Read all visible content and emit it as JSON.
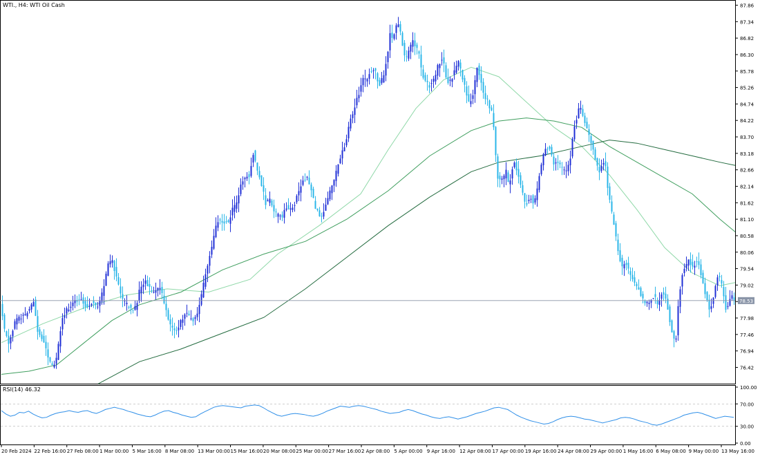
{
  "chart_title": "WTI., H4: WTI Oil Cash",
  "chart_data": [
    {
      "type": "candlestick",
      "title": "WTI., H4: WTI Oil Cash",
      "price_axis_ticks": [
        "87.86",
        "87.34",
        "86.82",
        "86.30",
        "85.78",
        "85.26",
        "84.74",
        "84.22",
        "83.70",
        "83.18",
        "82.66",
        "82.14",
        "81.62",
        "81.10",
        "80.58",
        "80.06",
        "79.54",
        "79.02",
        "78.50",
        "77.98",
        "77.46",
        "76.94",
        "76.42"
      ],
      "ylim": [
        75.95,
        87.98
      ],
      "current_price": "78.53",
      "time_axis_ticks": [
        "20 Feb 2024",
        "22 Feb 16:00",
        "27 Feb 08:00",
        "1 Mar 00:00",
        "5 Mar 16:00",
        "8 Mar 08:00",
        "13 Mar 00:00",
        "15 Mar 16:00",
        "20 Mar 08:00",
        "25 Mar 00:00",
        "27 Mar 16:00",
        "2 Apr 08:00",
        "5 Apr 00:00",
        "9 Apr 16:00",
        "12 Apr 08:00",
        "17 Apr 00:00",
        "19 Apr 16:00",
        "24 Apr 08:00",
        "29 Apr 00:00",
        "1 May 16:00",
        "6 May 08:00",
        "9 May 00:00",
        "13 May 16:00"
      ],
      "price_path": [
        [
          0,
          78.5
        ],
        [
          5,
          77.7
        ],
        [
          12,
          77.2
        ],
        [
          22,
          77.9
        ],
        [
          32,
          78.0
        ],
        [
          42,
          78.2
        ],
        [
          48,
          78.5
        ],
        [
          54,
          77.6
        ],
        [
          62,
          77.3
        ],
        [
          68,
          76.8
        ],
        [
          72,
          76.6
        ],
        [
          76,
          76.4
        ],
        [
          82,
          76.8
        ],
        [
          88,
          77.8
        ],
        [
          95,
          78.2
        ],
        [
          102,
          78.4
        ],
        [
          110,
          78.5
        ],
        [
          118,
          78.6
        ],
        [
          124,
          78.3
        ],
        [
          132,
          78.5
        ],
        [
          140,
          78.3
        ],
        [
          148,
          78.8
        ],
        [
          155,
          79.6
        ],
        [
          162,
          79.8
        ],
        [
          170,
          79.1
        ],
        [
          176,
          78.6
        ],
        [
          182,
          78.4
        ],
        [
          190,
          78.3
        ],
        [
          196,
          78.3
        ],
        [
          202,
          78.9
        ],
        [
          210,
          79.2
        ],
        [
          216,
          78.9
        ],
        [
          224,
          78.8
        ],
        [
          230,
          79.0
        ],
        [
          236,
          78.6
        ],
        [
          242,
          78.0
        ],
        [
          248,
          77.7
        ],
        [
          256,
          77.6
        ],
        [
          262,
          77.9
        ],
        [
          268,
          78.1
        ],
        [
          274,
          78.0
        ],
        [
          280,
          77.9
        ],
        [
          286,
          78.1
        ],
        [
          292,
          78.8
        ],
        [
          298,
          79.5
        ],
        [
          304,
          80.0
        ],
        [
          310,
          80.7
        ],
        [
          316,
          81.1
        ],
        [
          322,
          81.0
        ],
        [
          330,
          81.0
        ],
        [
          336,
          81.4
        ],
        [
          342,
          81.6
        ],
        [
          348,
          82.2
        ],
        [
          354,
          82.4
        ],
        [
          360,
          82.5
        ],
        [
          366,
          83.2
        ],
        [
          372,
          82.7
        ],
        [
          378,
          82.2
        ],
        [
          384,
          81.6
        ],
        [
          390,
          81.7
        ],
        [
          396,
          81.3
        ],
        [
          402,
          81.2
        ],
        [
          408,
          81.2
        ],
        [
          414,
          81.5
        ],
        [
          420,
          81.4
        ],
        [
          426,
          81.6
        ],
        [
          432,
          82.0
        ],
        [
          438,
          82.3
        ],
        [
          444,
          82.4
        ],
        [
          450,
          82.0
        ],
        [
          456,
          81.5
        ],
        [
          462,
          81.2
        ],
        [
          466,
          81.1
        ],
        [
          470,
          81.5
        ],
        [
          476,
          81.9
        ],
        [
          482,
          82.2
        ],
        [
          488,
          82.8
        ],
        [
          494,
          83.2
        ],
        [
          500,
          83.5
        ],
        [
          506,
          84.2
        ],
        [
          512,
          84.6
        ],
        [
          518,
          85.0
        ],
        [
          524,
          85.5
        ],
        [
          530,
          85.5
        ],
        [
          536,
          85.8
        ],
        [
          542,
          85.8
        ],
        [
          548,
          85.3
        ],
        [
          554,
          85.6
        ],
        [
          560,
          86.2
        ],
        [
          564,
          87.0
        ],
        [
          568,
          86.8
        ],
        [
          574,
          87.3
        ],
        [
          578,
          87.2
        ],
        [
          582,
          86.6
        ],
        [
          586,
          86.1
        ],
        [
          592,
          86.4
        ],
        [
          596,
          86.8
        ],
        [
          600,
          86.6
        ],
        [
          606,
          86.3
        ],
        [
          610,
          85.7
        ],
        [
          616,
          85.4
        ],
        [
          622,
          85.3
        ],
        [
          628,
          85.5
        ],
        [
          634,
          86.0
        ],
        [
          640,
          86.2
        ],
        [
          644,
          85.7
        ],
        [
          648,
          85.4
        ],
        [
          654,
          85.6
        ],
        [
          660,
          85.9
        ],
        [
          664,
          86.1
        ],
        [
          668,
          85.6
        ],
        [
          672,
          85.3
        ],
        [
          678,
          84.8
        ],
        [
          684,
          85.0
        ],
        [
          690,
          85.9
        ],
        [
          694,
          85.6
        ],
        [
          700,
          85.0
        ],
        [
          706,
          84.8
        ],
        [
          712,
          84.4
        ],
        [
          716,
          83.6
        ],
        [
          718,
          82.6
        ],
        [
          722,
          82.3
        ],
        [
          728,
          82.4
        ],
        [
          732,
          82.6
        ],
        [
          736,
          82.1
        ],
        [
          740,
          82.6
        ],
        [
          744,
          82.9
        ],
        [
          748,
          82.6
        ],
        [
          752,
          82.3
        ],
        [
          756,
          81.9
        ],
        [
          760,
          81.6
        ],
        [
          764,
          81.6
        ],
        [
          768,
          81.8
        ],
        [
          772,
          81.6
        ],
        [
          776,
          81.9
        ],
        [
          780,
          82.5
        ],
        [
          784,
          83.0
        ],
        [
          790,
          83.3
        ],
        [
          796,
          83.4
        ],
        [
          800,
          82.9
        ],
        [
          806,
          82.9
        ],
        [
          812,
          82.7
        ],
        [
          818,
          82.6
        ],
        [
          824,
          82.9
        ],
        [
          830,
          84.0
        ],
        [
          834,
          84.3
        ],
        [
          838,
          84.7
        ],
        [
          842,
          84.5
        ],
        [
          846,
          84.2
        ],
        [
          850,
          83.9
        ],
        [
          854,
          83.6
        ],
        [
          858,
          83.3
        ],
        [
          864,
          82.8
        ],
        [
          868,
          82.6
        ],
        [
          872,
          83.0
        ],
        [
          876,
          82.7
        ],
        [
          880,
          81.9
        ],
        [
          884,
          81.4
        ],
        [
          888,
          80.9
        ],
        [
          892,
          80.4
        ],
        [
          896,
          79.9
        ],
        [
          900,
          79.6
        ],
        [
          904,
          79.8
        ],
        [
          910,
          79.4
        ],
        [
          916,
          79.2
        ],
        [
          920,
          79.0
        ],
        [
          924,
          78.9
        ],
        [
          928,
          78.6
        ],
        [
          934,
          78.4
        ],
        [
          940,
          78.5
        ],
        [
          946,
          78.7
        ],
        [
          952,
          78.4
        ],
        [
          958,
          78.8
        ],
        [
          962,
          78.6
        ],
        [
          966,
          78.3
        ],
        [
          970,
          77.8
        ],
        [
          974,
          77.3
        ],
        [
          978,
          77.4
        ],
        [
          982,
          78.6
        ],
        [
          986,
          79.3
        ],
        [
          990,
          79.5
        ],
        [
          996,
          79.8
        ],
        [
          1002,
          79.6
        ],
        [
          1008,
          79.8
        ],
        [
          1014,
          79.4
        ],
        [
          1018,
          78.9
        ],
        [
          1022,
          78.6
        ],
        [
          1026,
          78.3
        ],
        [
          1030,
          78.4
        ],
        [
          1034,
          78.9
        ],
        [
          1038,
          79.3
        ],
        [
          1042,
          79.2
        ],
        [
          1046,
          78.8
        ],
        [
          1050,
          78.3
        ],
        [
          1054,
          78.4
        ],
        [
          1058,
          78.7
        ],
        [
          1062,
          78.5
        ]
      ],
      "moving_averages": [
        {
          "color": "#8fd8a8",
          "points": [
            [
              0,
              77.2
            ],
            [
              60,
              77.8
            ],
            [
              120,
              78.3
            ],
            [
              180,
              78.7
            ],
            [
              240,
              78.9
            ],
            [
              300,
              78.8
            ],
            [
              360,
              79.2
            ],
            [
              400,
              80.0
            ],
            [
              460,
              80.9
            ],
            [
              520,
              81.9
            ],
            [
              560,
              83.3
            ],
            [
              600,
              84.6
            ],
            [
              640,
              85.5
            ],
            [
              680,
              85.9
            ],
            [
              720,
              85.6
            ],
            [
              760,
              84.8
            ],
            [
              800,
              84.0
            ],
            [
              840,
              83.4
            ],
            [
              880,
              82.5
            ],
            [
              920,
              81.4
            ],
            [
              960,
              80.2
            ],
            [
              1000,
              79.4
            ],
            [
              1040,
              79.0
            ],
            [
              1062,
              79.1
            ]
          ]
        },
        {
          "color": "#3f9e5e",
          "points": [
            [
              0,
              76.2
            ],
            [
              40,
              76.3
            ],
            [
              80,
              76.5
            ],
            [
              120,
              77.2
            ],
            [
              160,
              77.9
            ],
            [
              200,
              78.4
            ],
            [
              260,
              78.8
            ],
            [
              320,
              79.5
            ],
            [
              380,
              80.0
            ],
            [
              440,
              80.4
            ],
            [
              500,
              81.1
            ],
            [
              560,
              82.0
            ],
            [
              620,
              83.1
            ],
            [
              680,
              83.9
            ],
            [
              720,
              84.2
            ],
            [
              760,
              84.3
            ],
            [
              800,
              84.2
            ],
            [
              840,
              84.0
            ],
            [
              880,
              83.4
            ],
            [
              920,
              82.9
            ],
            [
              960,
              82.4
            ],
            [
              1000,
              81.9
            ],
            [
              1040,
              81.1
            ],
            [
              1062,
              80.7
            ]
          ]
        },
        {
          "color": "#236b3f",
          "points": [
            [
              140,
              75.9
            ],
            [
              200,
              76.6
            ],
            [
              260,
              77.0
            ],
            [
              320,
              77.5
            ],
            [
              380,
              78.0
            ],
            [
              440,
              78.9
            ],
            [
              500,
              79.9
            ],
            [
              560,
              80.9
            ],
            [
              620,
              81.8
            ],
            [
              680,
              82.6
            ],
            [
              720,
              82.9
            ],
            [
              780,
              83.1
            ],
            [
              840,
              83.4
            ],
            [
              880,
              83.6
            ],
            [
              920,
              83.5
            ],
            [
              960,
              83.3
            ],
            [
              1000,
              83.1
            ],
            [
              1040,
              82.9
            ],
            [
              1062,
              82.8
            ]
          ]
        }
      ],
      "colors": {
        "bull": "#1f2fd6",
        "bear": "#2ab6e8",
        "price_line": "#8a95a8",
        "price_label_bg": "#8a95a8"
      }
    },
    {
      "type": "line",
      "label": "RSI(14) 46.32",
      "ylim": [
        0,
        100
      ],
      "axis_ticks": [
        "100.00",
        "70.00",
        "30.00",
        "0.00"
      ],
      "levels": [
        70,
        30
      ],
      "values": [
        58,
        52,
        48,
        50,
        55,
        54,
        57,
        52,
        48,
        45,
        46,
        50,
        53,
        55,
        56,
        58,
        56,
        55,
        57,
        58,
        55,
        53,
        56,
        60,
        62,
        64,
        62,
        60,
        57,
        55,
        52,
        50,
        48,
        47,
        50,
        54,
        57,
        58,
        55,
        53,
        50,
        48,
        46,
        47,
        52,
        56,
        60,
        64,
        66,
        67,
        66,
        65,
        64,
        63,
        66,
        67,
        68,
        67,
        63,
        58,
        54,
        50,
        48,
        50,
        52,
        53,
        52,
        51,
        49,
        48,
        50,
        53,
        57,
        60,
        63,
        66,
        65,
        64,
        66,
        67,
        66,
        64,
        62,
        60,
        57,
        55,
        53,
        54,
        55,
        58,
        60,
        58,
        55,
        52,
        50,
        47,
        45,
        44,
        46,
        47,
        45,
        43,
        45,
        47,
        50,
        53,
        55,
        57,
        60,
        63,
        64,
        62,
        60,
        55,
        50,
        46,
        43,
        40,
        38,
        36,
        34,
        35,
        38,
        42,
        45,
        47,
        48,
        47,
        45,
        43,
        42,
        40,
        38,
        36,
        38,
        40,
        42,
        45,
        46,
        45,
        43,
        40,
        38,
        36,
        33,
        32,
        34,
        37,
        40,
        43,
        46,
        50,
        52,
        54,
        55,
        53,
        50,
        47,
        44,
        46,
        48,
        47,
        46
      ]
    }
  ]
}
